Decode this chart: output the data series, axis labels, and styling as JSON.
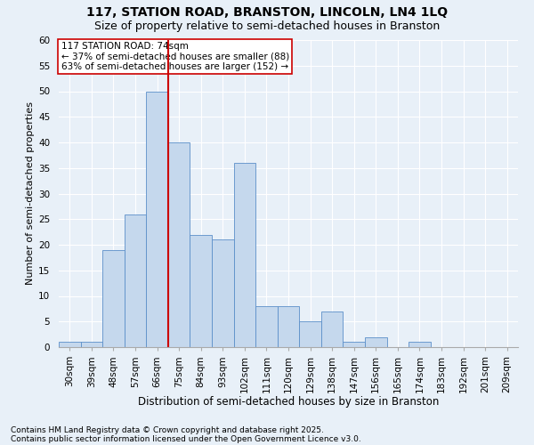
{
  "title1": "117, STATION ROAD, BRANSTON, LINCOLN, LN4 1LQ",
  "title2": "Size of property relative to semi-detached houses in Branston",
  "xlabel": "Distribution of semi-detached houses by size in Branston",
  "ylabel": "Number of semi-detached properties",
  "bar_labels": [
    "30sqm",
    "39sqm",
    "48sqm",
    "57sqm",
    "66sqm",
    "75sqm",
    "84sqm",
    "93sqm",
    "102sqm",
    "111sqm",
    "120sqm",
    "129sqm",
    "138sqm",
    "147sqm",
    "156sqm",
    "165sqm",
    "174sqm",
    "183sqm",
    "192sqm",
    "201sqm",
    "209sqm"
  ],
  "bar_values": [
    1,
    1,
    19,
    26,
    50,
    40,
    22,
    21,
    36,
    8,
    8,
    5,
    7,
    1,
    2,
    0,
    1,
    0,
    0,
    0,
    0
  ],
  "bar_color": "#c5d8ed",
  "bar_edge_color": "#5b8fc9",
  "vline_x": 4.5,
  "vline_color": "#cc0000",
  "annotation_text": "117 STATION ROAD: 74sqm\n← 37% of semi-detached houses are smaller (88)\n63% of semi-detached houses are larger (152) →",
  "box_color": "#cc0000",
  "ylim": [
    0,
    60
  ],
  "yticks": [
    0,
    5,
    10,
    15,
    20,
    25,
    30,
    35,
    40,
    45,
    50,
    55,
    60
  ],
  "footer1": "Contains HM Land Registry data © Crown copyright and database right 2025.",
  "footer2": "Contains public sector information licensed under the Open Government Licence v3.0.",
  "bg_color": "#e8f0f8",
  "plot_bg_color": "#e8f0f8",
  "grid_color": "#ffffff",
  "title1_fontsize": 10,
  "title2_fontsize": 9,
  "xlabel_fontsize": 8.5,
  "ylabel_fontsize": 8,
  "tick_fontsize": 7.5,
  "annotation_fontsize": 7.5,
  "footer_fontsize": 6.5
}
